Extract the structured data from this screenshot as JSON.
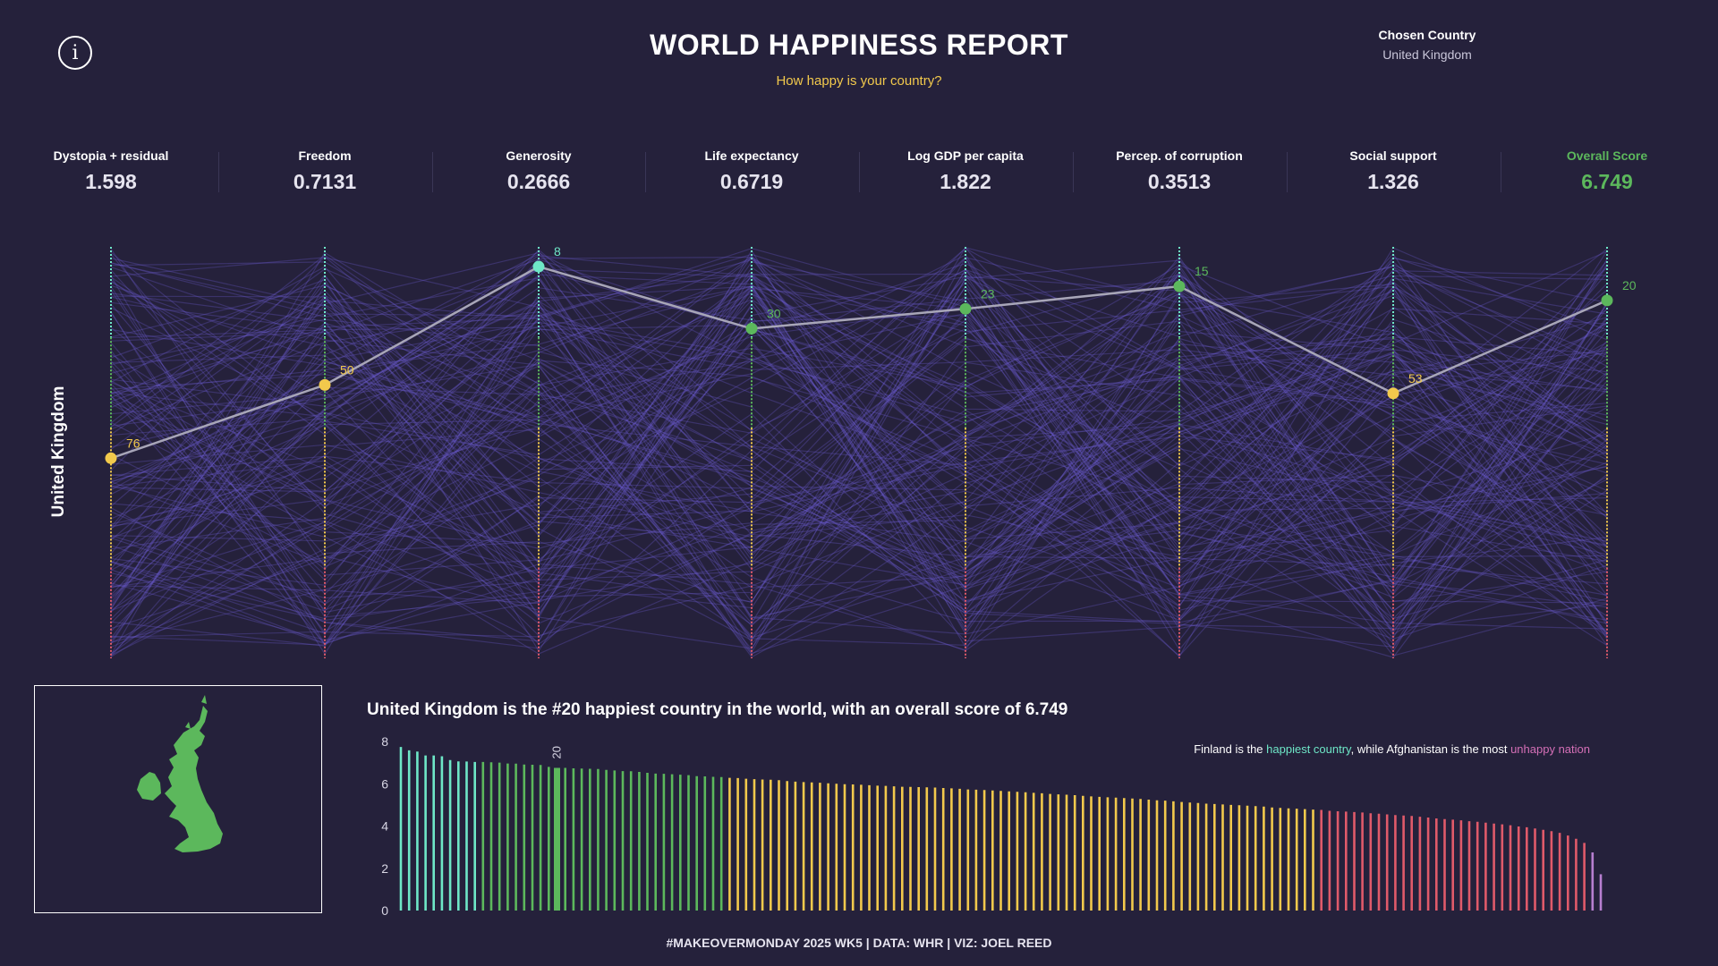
{
  "header": {
    "title": "WORLD HAPPINESS REPORT",
    "subtitle": "How happy is your country?",
    "chosen_label": "Chosen Country",
    "chosen_value": "United Kingdom"
  },
  "metrics": [
    {
      "label": "Dystopia + residual",
      "value": "1.598"
    },
    {
      "label": "Freedom",
      "value": "0.7131"
    },
    {
      "label": "Generosity",
      "value": "0.2666"
    },
    {
      "label": "Life expectancy",
      "value": "0.6719"
    },
    {
      "label": "Log GDP per capita",
      "value": "1.822"
    },
    {
      "label": "Percep. of corruption",
      "value": "0.3513"
    },
    {
      "label": "Social support",
      "value": "1.326"
    },
    {
      "label": "Overall Score",
      "value": "6.749"
    }
  ],
  "side_label": "United Kingdom",
  "sentence": "United Kingdom is the #20 happiest country in the world, with an overall score of 6.749",
  "note": {
    "part1": "Finland is the ",
    "happy": "happiest country",
    "part2": ", while Afghanistan is the most ",
    "unhappy": "unhappy nation"
  },
  "footer": "#MAKEOVERMONDAY 2025 WK5 | DATA: WHR | VIZ: JOEL REED",
  "colors": {
    "background": "#25213b",
    "lines": "#6a5acd",
    "top": "#6ee7c7",
    "upper": "#5cb85c",
    "middle": "#f2c94c",
    "lower": "#e05a6a",
    "bottom": "#b77fd0",
    "uk_line": "#a8a6b8"
  },
  "chart_data": [
    {
      "type": "line",
      "description_kind": "parallel-coordinates",
      "axes": [
        "Dystopia + residual",
        "Freedom",
        "Generosity",
        "Life expectancy",
        "Log GDP per capita",
        "Percep. of corruption",
        "Social support",
        "Overall Score"
      ],
      "rank_range": [
        1,
        147
      ],
      "highlighted": {
        "name": "United Kingdom",
        "ranks": [
          76,
          50,
          8,
          30,
          23,
          15,
          53,
          20
        ],
        "rank_labels": [
          "76",
          "50",
          "8",
          "30",
          "23",
          "15",
          "53",
          "20"
        ]
      }
    },
    {
      "type": "bar",
      "highlight_label": "20",
      "highlight_index": 20,
      "yticks": [
        "0",
        "2",
        "4",
        "6",
        "8"
      ],
      "ylim": [
        0,
        8
      ],
      "values": [
        7.74,
        7.58,
        7.52,
        7.34,
        7.34,
        7.3,
        7.12,
        7.06,
        7.05,
        7.03,
        7.03,
        7.02,
        7.0,
        6.96,
        6.95,
        6.91,
        6.9,
        6.89,
        6.8,
        6.75,
        6.75,
        6.73,
        6.72,
        6.71,
        6.7,
        6.66,
        6.63,
        6.6,
        6.59,
        6.56,
        6.52,
        6.48,
        6.47,
        6.45,
        6.43,
        6.41,
        6.36,
        6.35,
        6.33,
        6.32,
        6.28,
        6.27,
        6.24,
        6.22,
        6.2,
        6.19,
        6.17,
        6.13,
        6.1,
        6.08,
        6.06,
        6.05,
        6.02,
        6.0,
        5.98,
        5.97,
        5.95,
        5.93,
        5.91,
        5.9,
        5.88,
        5.86,
        5.85,
        5.84,
        5.83,
        5.82,
        5.8,
        5.78,
        5.76,
        5.73,
        5.72,
        5.7,
        5.68,
        5.66,
        5.64,
        5.62,
        5.6,
        5.57,
        5.55,
        5.52,
        5.5,
        5.48,
        5.46,
        5.43,
        5.4,
        5.38,
        5.36,
        5.34,
        5.32,
        5.3,
        5.28,
        5.25,
        5.22,
        5.2,
        5.17,
        5.14,
        5.11,
        5.09,
        5.06,
        5.04,
        5.02,
        5.0,
        4.98,
        4.96,
        4.94,
        4.92,
        4.88,
        4.86,
        4.84,
        4.82,
        4.8,
        4.78,
        4.76,
        4.72,
        4.7,
        4.68,
        4.66,
        4.64,
        4.6,
        4.58,
        4.55,
        4.52,
        4.5,
        4.48,
        4.44,
        4.4,
        4.36,
        4.33,
        4.3,
        4.27,
        4.23,
        4.2,
        4.16,
        4.12,
        4.08,
        4.04,
        3.98,
        3.94,
        3.88,
        3.82,
        3.76,
        3.68,
        3.55,
        3.4,
        3.2,
        2.75,
        1.72
      ]
    }
  ]
}
